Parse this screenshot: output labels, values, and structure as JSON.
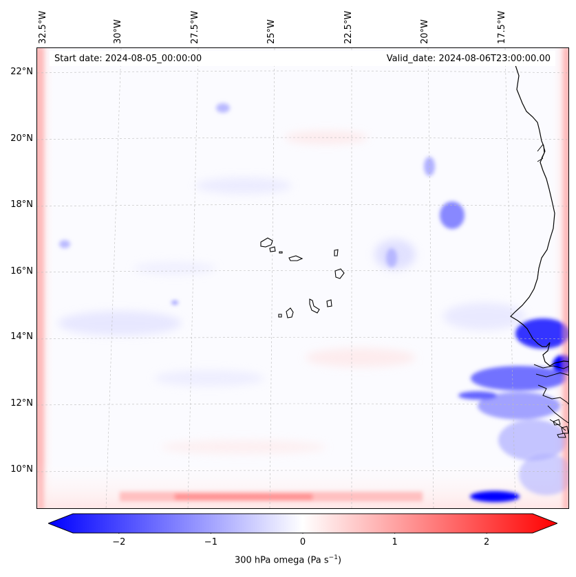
{
  "map": {
    "header": {
      "start_date": "Start date: 2024-08-05_00:00:00",
      "valid_date": "Valid_date: 2024-08-06T23:00:00.00"
    },
    "lon_labels": [
      "32.5°W",
      "30°W",
      "27.5°W",
      "25°W",
      "22.5°W",
      "20°W",
      "17.5°W"
    ],
    "lat_labels": [
      "22°N",
      "20°N",
      "18°N",
      "16°N",
      "14°N",
      "12°N",
      "10°N"
    ],
    "colorbar": {
      "title_main": "300 hPa omega (Pa s",
      "title_sup": "−1",
      "title_end": ")",
      "ticks": [
        {
          "label": "−2",
          "value": -2
        },
        {
          "label": "−1",
          "value": -1
        },
        {
          "label": "0",
          "value": 0
        },
        {
          "label": "1",
          "value": 1
        },
        {
          "label": "2",
          "value": 2
        }
      ],
      "vmin": -2.5,
      "vmax": 2.5,
      "negative_color": "#0000ff",
      "positive_color": "#ff0000",
      "mid_color": "#ffffff"
    }
  }
}
